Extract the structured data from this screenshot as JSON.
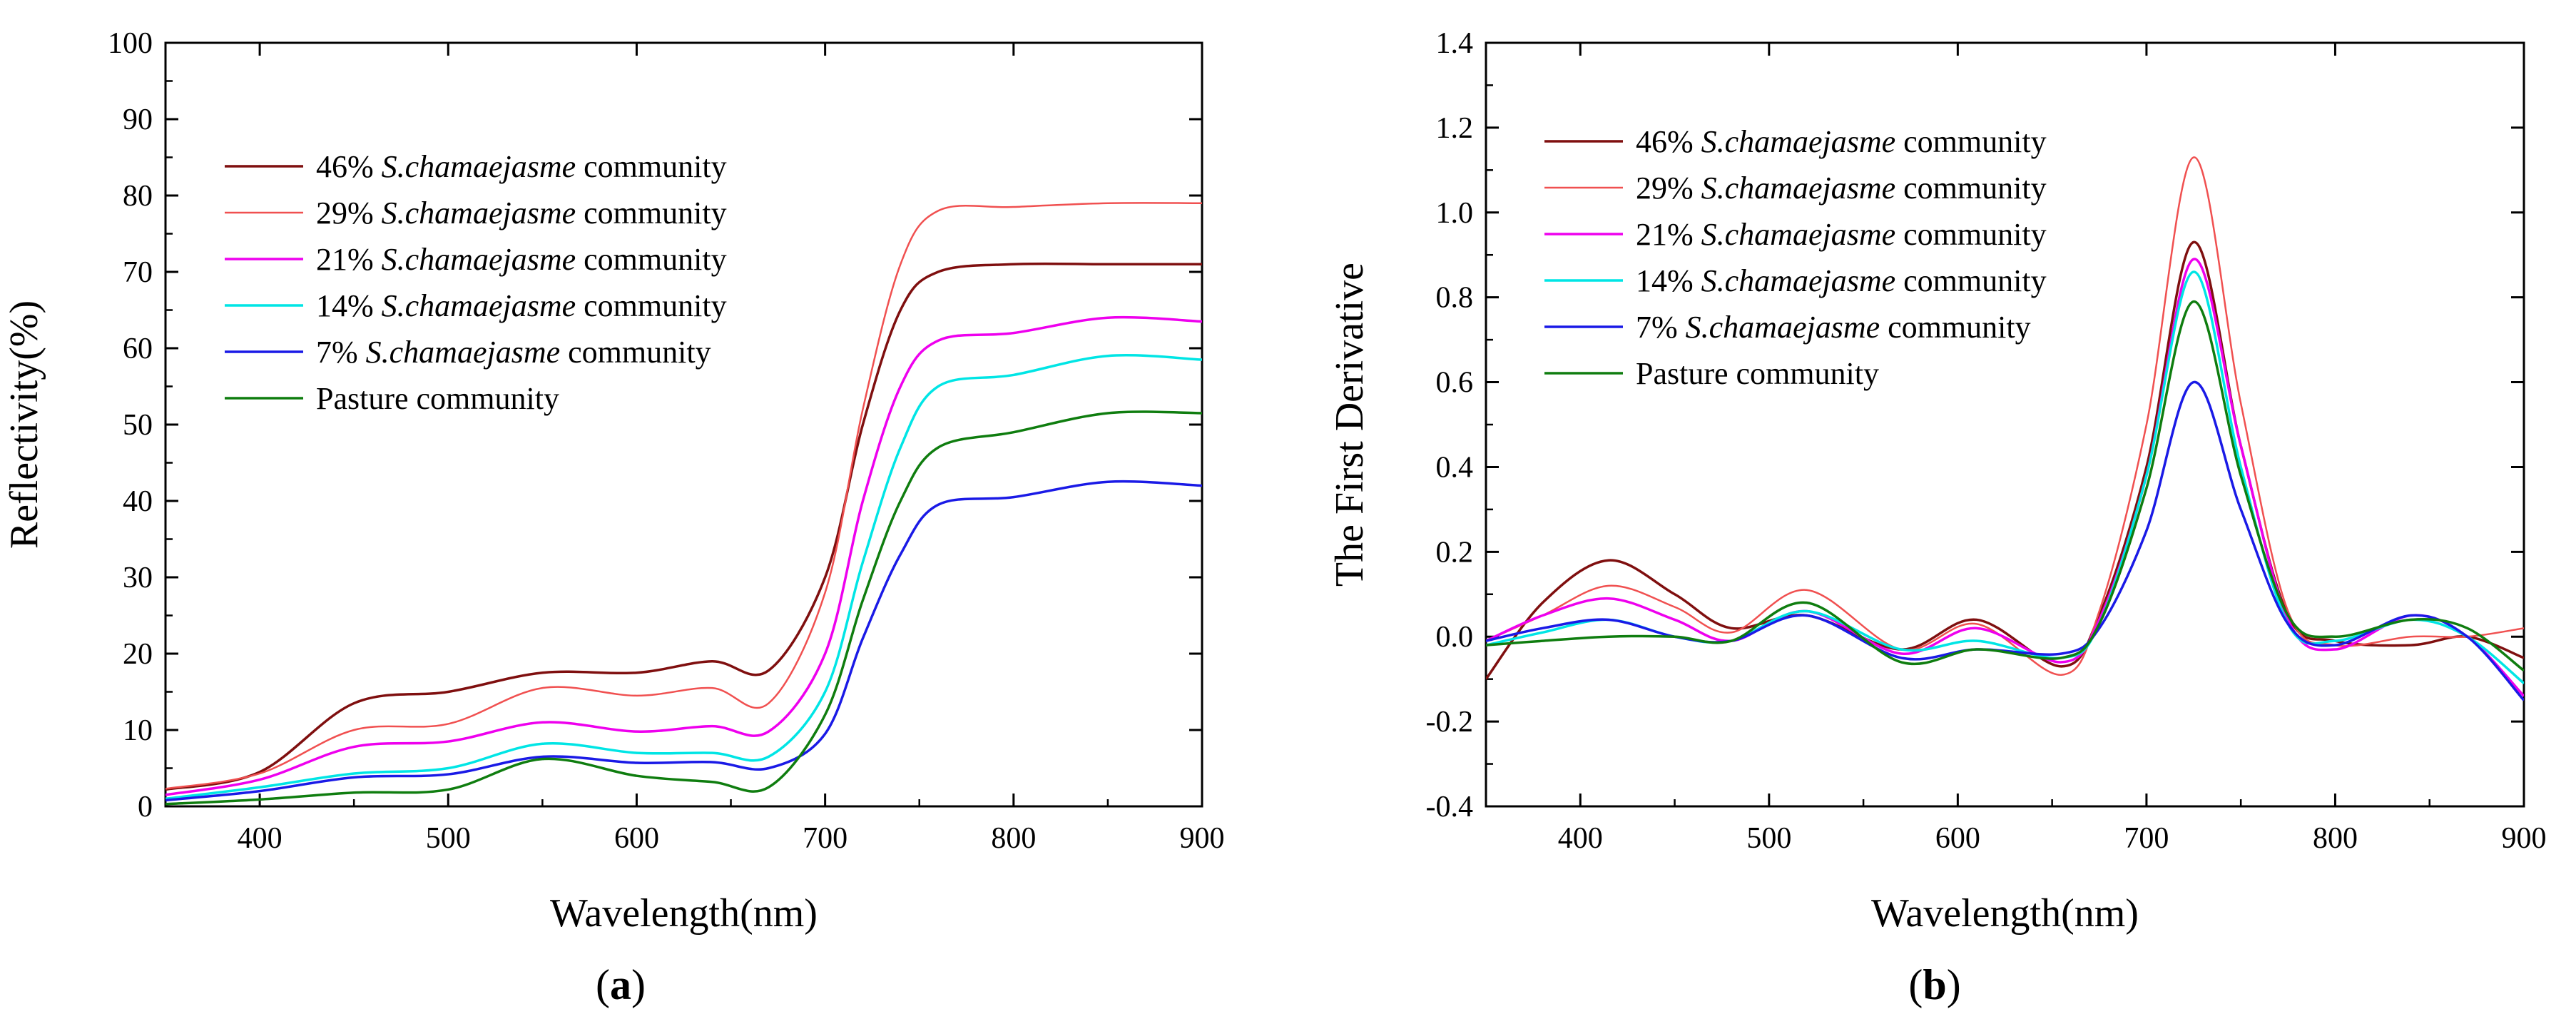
{
  "colors": {
    "s46": "#7f0f0f",
    "s29": "#f05050",
    "s21": "#ee00ee",
    "s14": "#00e5e5",
    "s7": "#1a1ae6",
    "pasture": "#0f7d0f"
  },
  "chart_data": [
    {
      "type": "line",
      "panel": "a",
      "panel_label": "a",
      "title": "",
      "xlabel": "Wavelength(nm)",
      "ylabel": "Reflectivity(%)",
      "xlim": [
        350,
        900
      ],
      "ylim": [
        0,
        100
      ],
      "xticks": [
        400,
        500,
        600,
        700,
        800,
        900
      ],
      "yticks": [
        0,
        10,
        20,
        30,
        40,
        50,
        60,
        70,
        80,
        90,
        100
      ],
      "grid": false,
      "legend_position": "top-left",
      "x": [
        350,
        400,
        450,
        500,
        550,
        600,
        640,
        670,
        700,
        720,
        740,
        760,
        800,
        850,
        900
      ],
      "series": [
        {
          "key": "s46",
          "pct": "46%",
          "species": "S.chamaejasme",
          "suffix": " community",
          "values": [
            2.2,
            4.5,
            13.5,
            15.0,
            17.5,
            17.5,
            19.0,
            17.8,
            30.0,
            50.0,
            65.0,
            70.0,
            71.0,
            71.0,
            71.0
          ]
        },
        {
          "key": "s29",
          "pct": "29%",
          "species": "S.chamaejasme",
          "suffix": " community",
          "values": [
            2.3,
            4.3,
            10.0,
            10.8,
            15.5,
            14.5,
            15.5,
            13.5,
            28.0,
            52.0,
            71.0,
            78.0,
            78.5,
            79.0,
            79.0
          ]
        },
        {
          "key": "s21",
          "pct": "21%",
          "species": "S.chamaejasme",
          "suffix": " community",
          "values": [
            1.5,
            3.5,
            7.8,
            8.5,
            11.0,
            9.8,
            10.5,
            9.8,
            20.0,
            40.0,
            55.0,
            61.0,
            62.0,
            64.0,
            63.5
          ]
        },
        {
          "key": "s14",
          "pct": "14%",
          "species": "S.chamaejasme",
          "suffix": " community",
          "values": [
            1.0,
            2.5,
            4.3,
            5.0,
            8.2,
            7.0,
            7.0,
            6.5,
            15.0,
            32.0,
            47.0,
            55.0,
            56.5,
            59.0,
            58.5
          ]
        },
        {
          "key": "s7",
          "pct": "7%",
          "species": "S.chamaejasme",
          "suffix": " community",
          "values": [
            0.8,
            2.0,
            3.8,
            4.2,
            6.5,
            5.7,
            5.8,
            5.0,
            9.5,
            22.0,
            33.0,
            39.5,
            40.5,
            42.5,
            42.0
          ]
        },
        {
          "key": "pasture",
          "pct": "",
          "species": "",
          "suffix": "Pasture community",
          "values": [
            0.3,
            0.9,
            1.8,
            2.2,
            6.2,
            4.0,
            3.2,
            2.5,
            12.0,
            27.0,
            40.0,
            47.0,
            49.0,
            51.5,
            51.5
          ]
        }
      ]
    },
    {
      "type": "line",
      "panel": "b",
      "panel_label": "b",
      "title": "",
      "xlabel": "Wavelength(nm)",
      "ylabel": "The First Derivative",
      "xlim": [
        350,
        900
      ],
      "ylim": [
        -0.4,
        1.4
      ],
      "xticks": [
        400,
        500,
        600,
        700,
        800,
        900
      ],
      "yticks": [
        -0.4,
        -0.2,
        0.0,
        0.2,
        0.4,
        0.6,
        0.8,
        1.0,
        1.2,
        1.4
      ],
      "grid": false,
      "legend_position": "top-left",
      "x": [
        350,
        380,
        415,
        450,
        480,
        520,
        570,
        610,
        655,
        675,
        700,
        725,
        750,
        775,
        800,
        840,
        870,
        900
      ],
      "series": [
        {
          "key": "s46",
          "pct": "46%",
          "species": "S.chamaejasme",
          "suffix": " community",
          "values": [
            -0.1,
            0.08,
            0.18,
            0.1,
            0.02,
            0.05,
            -0.03,
            0.04,
            -0.07,
            0.05,
            0.4,
            0.93,
            0.45,
            0.05,
            -0.01,
            -0.02,
            0.0,
            -0.05
          ]
        },
        {
          "key": "s29",
          "pct": "29%",
          "species": "S.chamaejasme",
          "suffix": " community",
          "values": [
            -0.01,
            0.05,
            0.12,
            0.07,
            0.01,
            0.11,
            -0.03,
            0.03,
            -0.09,
            0.06,
            0.5,
            1.13,
            0.55,
            0.06,
            -0.02,
            0.0,
            0.0,
            0.02
          ]
        },
        {
          "key": "s21",
          "pct": "21%",
          "species": "S.chamaejasme",
          "suffix": " community",
          "values": [
            -0.01,
            0.05,
            0.09,
            0.04,
            -0.01,
            0.06,
            -0.04,
            0.02,
            -0.06,
            0.04,
            0.38,
            0.89,
            0.45,
            0.04,
            -0.03,
            0.05,
            0.0,
            -0.14
          ]
        },
        {
          "key": "s14",
          "pct": "14%",
          "species": "S.chamaejasme",
          "suffix": " community",
          "values": [
            -0.02,
            0.01,
            0.04,
            0.0,
            -0.01,
            0.06,
            -0.03,
            -0.01,
            -0.05,
            0.03,
            0.38,
            0.86,
            0.4,
            0.03,
            -0.01,
            0.04,
            0.0,
            -0.11
          ]
        },
        {
          "key": "s7",
          "pct": "7%",
          "species": "S.chamaejasme",
          "suffix": " community",
          "values": [
            -0.01,
            0.02,
            0.04,
            0.0,
            -0.01,
            0.05,
            -0.05,
            -0.03,
            -0.04,
            0.02,
            0.25,
            0.6,
            0.3,
            0.03,
            -0.02,
            0.05,
            0.0,
            -0.15
          ]
        },
        {
          "key": "pasture",
          "pct": "",
          "species": "",
          "suffix": "Pasture community",
          "values": [
            -0.02,
            -0.01,
            0.0,
            0.0,
            -0.01,
            0.08,
            -0.06,
            -0.03,
            -0.05,
            0.03,
            0.35,
            0.79,
            0.38,
            0.05,
            0.0,
            0.04,
            0.02,
            -0.08
          ]
        }
      ]
    }
  ]
}
